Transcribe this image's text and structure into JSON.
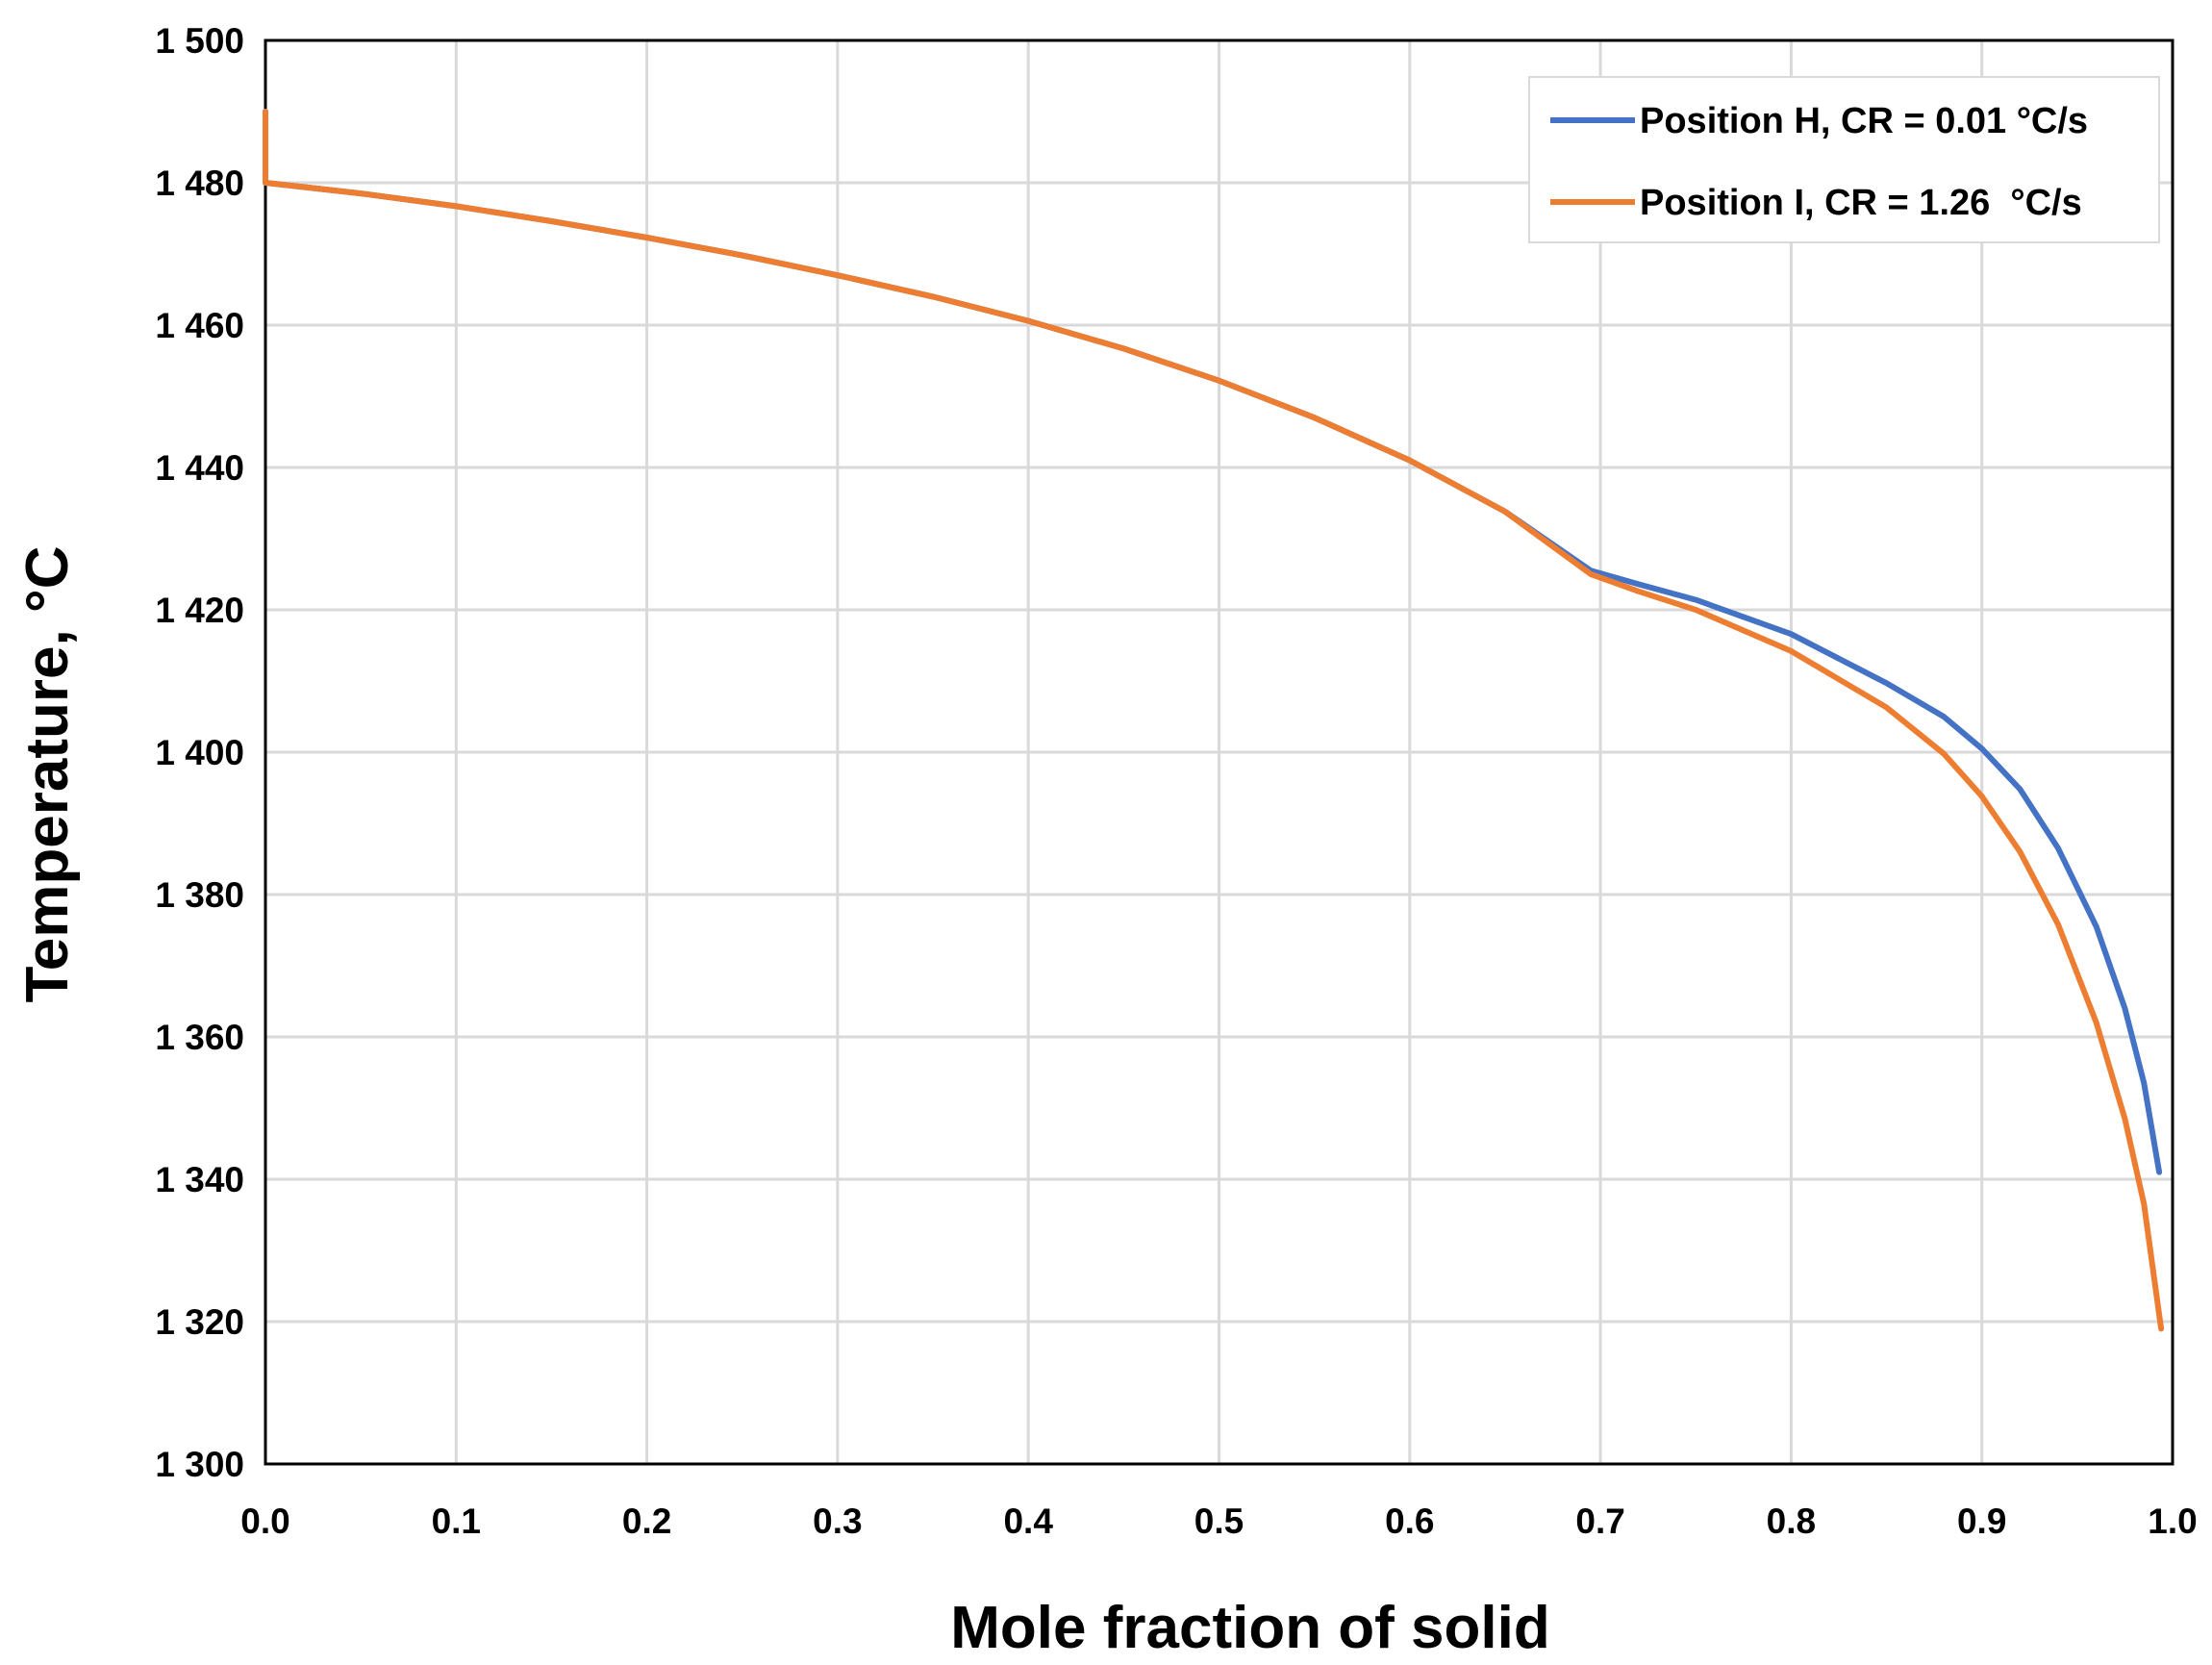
{
  "chart_data": {
    "type": "line",
    "title": "",
    "xlabel": "Mole fraction of solid",
    "ylabel": "Temperature, °C",
    "xlim": [
      0.0,
      1.0
    ],
    "ylim": [
      1300,
      1500
    ],
    "x_ticks": [
      0.0,
      0.1,
      0.2,
      0.3,
      0.4,
      0.5,
      0.6,
      0.7,
      0.8,
      0.9,
      1.0
    ],
    "x_tick_labels": [
      "0.0",
      "0.1",
      "0.2",
      "0.3",
      "0.4",
      "0.5",
      "0.6",
      "0.7",
      "0.8",
      "0.9",
      "1.0"
    ],
    "y_ticks": [
      1300,
      1320,
      1340,
      1360,
      1380,
      1400,
      1420,
      1440,
      1460,
      1480,
      1500
    ],
    "y_tick_labels": [
      "1 300",
      "1 320",
      "1 340",
      "1 360",
      "1 380",
      "1 400",
      "1 420",
      "1 440",
      "1 460",
      "1 480",
      "1 500"
    ],
    "grid": true,
    "legend_position": "top-right",
    "series": [
      {
        "name": "Position H, CR = 0.01 °C/s",
        "color": "#4472C4",
        "points": [
          [
            0.0,
            1490
          ],
          [
            0.0,
            1480
          ],
          [
            0.05,
            1478.5
          ],
          [
            0.1,
            1476.7
          ],
          [
            0.15,
            1474.6
          ],
          [
            0.2,
            1472.3
          ],
          [
            0.25,
            1469.8
          ],
          [
            0.3,
            1467.0
          ],
          [
            0.35,
            1464.0
          ],
          [
            0.4,
            1460.6
          ],
          [
            0.45,
            1456.7
          ],
          [
            0.5,
            1452.2
          ],
          [
            0.55,
            1447.0
          ],
          [
            0.6,
            1441.0
          ],
          [
            0.65,
            1433.8
          ],
          [
            0.695,
            1425.5
          ],
          [
            0.72,
            1423.6
          ],
          [
            0.75,
            1421.4
          ],
          [
            0.8,
            1416.6
          ],
          [
            0.85,
            1409.7
          ],
          [
            0.88,
            1405.0
          ],
          [
            0.9,
            1400.5
          ],
          [
            0.92,
            1394.8
          ],
          [
            0.94,
            1386.5
          ],
          [
            0.96,
            1375.5
          ],
          [
            0.975,
            1364.0
          ],
          [
            0.985,
            1353.5
          ],
          [
            0.993,
            1341.0
          ]
        ]
      },
      {
        "name": "Position I, CR = 1.26  °C/s",
        "color": "#ED7D31",
        "points": [
          [
            0.0,
            1490
          ],
          [
            0.0,
            1480
          ],
          [
            0.05,
            1478.5
          ],
          [
            0.1,
            1476.7
          ],
          [
            0.15,
            1474.6
          ],
          [
            0.2,
            1472.3
          ],
          [
            0.25,
            1469.8
          ],
          [
            0.3,
            1467.0
          ],
          [
            0.35,
            1464.0
          ],
          [
            0.4,
            1460.6
          ],
          [
            0.45,
            1456.7
          ],
          [
            0.5,
            1452.2
          ],
          [
            0.55,
            1447.0
          ],
          [
            0.6,
            1441.0
          ],
          [
            0.65,
            1433.8
          ],
          [
            0.695,
            1425.0
          ],
          [
            0.72,
            1422.6
          ],
          [
            0.75,
            1420.0
          ],
          [
            0.8,
            1414.2
          ],
          [
            0.85,
            1406.3
          ],
          [
            0.88,
            1399.8
          ],
          [
            0.9,
            1393.8
          ],
          [
            0.92,
            1386.0
          ],
          [
            0.94,
            1375.8
          ],
          [
            0.96,
            1362.0
          ],
          [
            0.975,
            1348.5
          ],
          [
            0.985,
            1336.5
          ],
          [
            0.994,
            1319.0
          ]
        ]
      }
    ]
  }
}
